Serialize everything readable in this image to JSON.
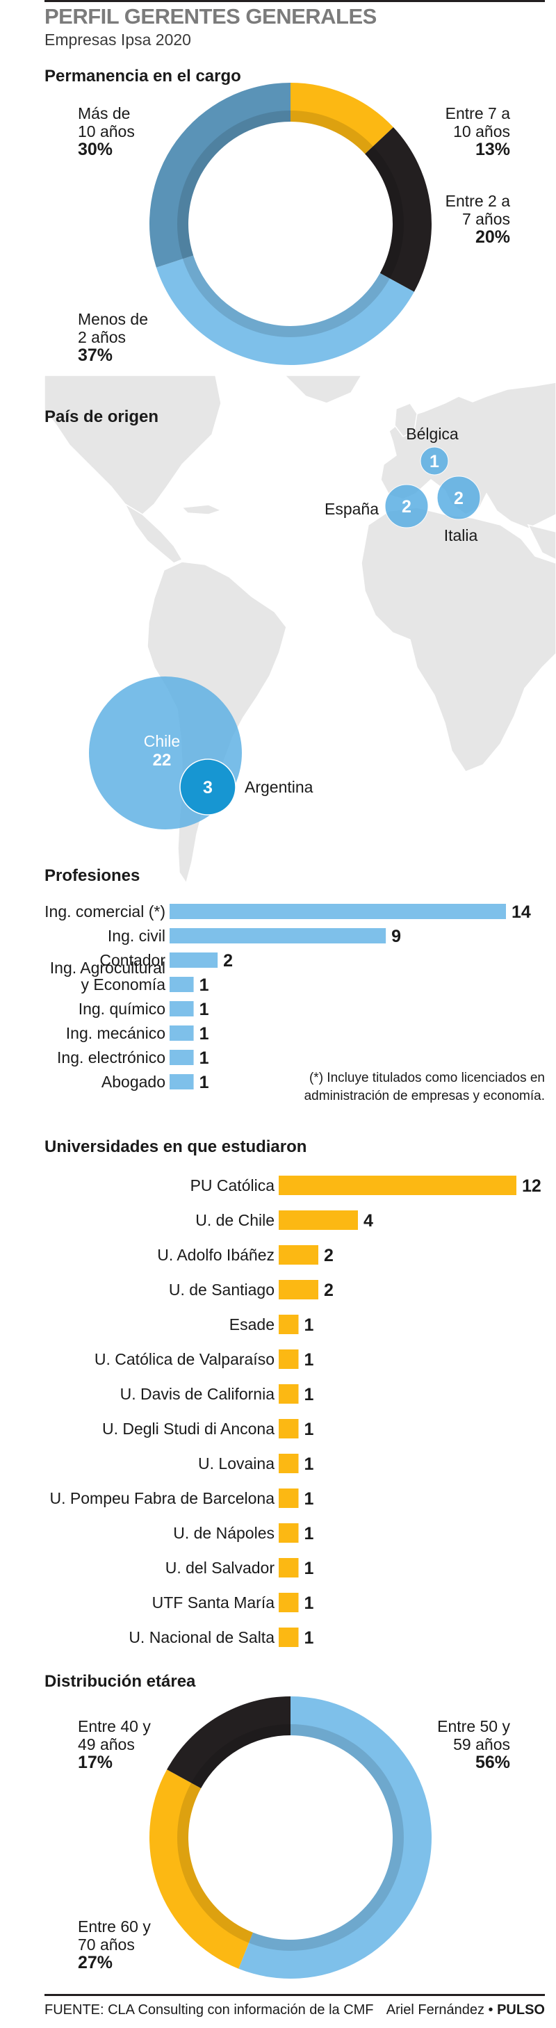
{
  "header": {
    "title": "PERFIL GERENTES GENERALES",
    "subtitle": "Empresas Ipsa 2020"
  },
  "colors": {
    "blue": "#7ec0ea",
    "steel": "#5a93b7",
    "black": "#231f20",
    "yellow": "#fcb813",
    "bubble": "#5aaee3",
    "bubble_dark": "#1796d2",
    "land": "#e6e6e6",
    "bar_blue": "#7ec0ea",
    "bar_yellow": "#fcb813"
  },
  "chart_data": [
    {
      "type": "pie",
      "title": "Permanencia en el cargo",
      "slices": [
        {
          "line1": "Entre 7 a",
          "line2": "10 años",
          "pct": "13%",
          "value": 13,
          "color": "#fcb813"
        },
        {
          "line1": "Entre 2 a",
          "line2": "7 años",
          "pct": "20%",
          "value": 20,
          "color": "#231f20"
        },
        {
          "line1": "Menos de",
          "line2": "2 años",
          "pct": "37%",
          "value": 37,
          "color": "#7ec0ea"
        },
        {
          "line1": "Más de",
          "line2": "10 años",
          "pct": "30%",
          "value": 30,
          "color": "#5a93b7"
        }
      ]
    },
    {
      "type": "map",
      "title": "País de origen",
      "points": [
        {
          "country": "Bélgica",
          "value": 1
        },
        {
          "country": "España",
          "value": 2
        },
        {
          "country": "Italia",
          "value": 2
        },
        {
          "country": "Chile",
          "value": 22
        },
        {
          "country": "Argentina",
          "value": 3
        }
      ]
    },
    {
      "type": "bar",
      "title": "Profesiones",
      "categories": [
        [
          "Ing. comercial (*)"
        ],
        [
          "Ing. civil"
        ],
        [
          "Contador"
        ],
        [
          "Ing. Agrocultural",
          "y Economía"
        ],
        [
          "Ing. químico"
        ],
        [
          "Ing. mecánico"
        ],
        [
          "Ing. electrónico"
        ],
        [
          "Abogado"
        ]
      ],
      "values": [
        14,
        9,
        2,
        1,
        1,
        1,
        1,
        1
      ],
      "note": [
        "(*) Incluye titulados como licenciados en",
        "administración de empresas y economía."
      ]
    },
    {
      "type": "bar",
      "title": "Universidades en que estudiaron",
      "categories": [
        "PU Católica",
        "U. de Chile",
        "U. Adolfo Ibáñez",
        "U. de Santiago",
        "Esade",
        "U. Católica de Valparaíso",
        "U. Davis de California",
        "U. Degli Studi di Ancona",
        "U. Lovaina",
        "U. Pompeu Fabra de Barcelona",
        "U. de Nápoles",
        "U. del Salvador",
        "UTF Santa María",
        "U. Nacional de Salta"
      ],
      "values": [
        12,
        4,
        2,
        2,
        1,
        1,
        1,
        1,
        1,
        1,
        1,
        1,
        1,
        1
      ]
    },
    {
      "type": "pie",
      "title": "Distribución etárea",
      "slices": [
        {
          "line1": "Entre 50 y",
          "line2": "59 años",
          "pct": "56%",
          "value": 56,
          "color": "#7ec0ea"
        },
        {
          "line1": "Entre 60 y",
          "line2": "70 años",
          "pct": "27%",
          "value": 27,
          "color": "#fcb813"
        },
        {
          "line1": "Entre 40 y",
          "line2": "49 años",
          "pct": "17%",
          "value": 17,
          "color": "#231f20"
        }
      ]
    }
  ],
  "footer": {
    "source": "FUENTE: CLA Consulting con información de la CMF",
    "author": "Ariel Fernández",
    "sep": " • ",
    "brand": "PULSO"
  }
}
